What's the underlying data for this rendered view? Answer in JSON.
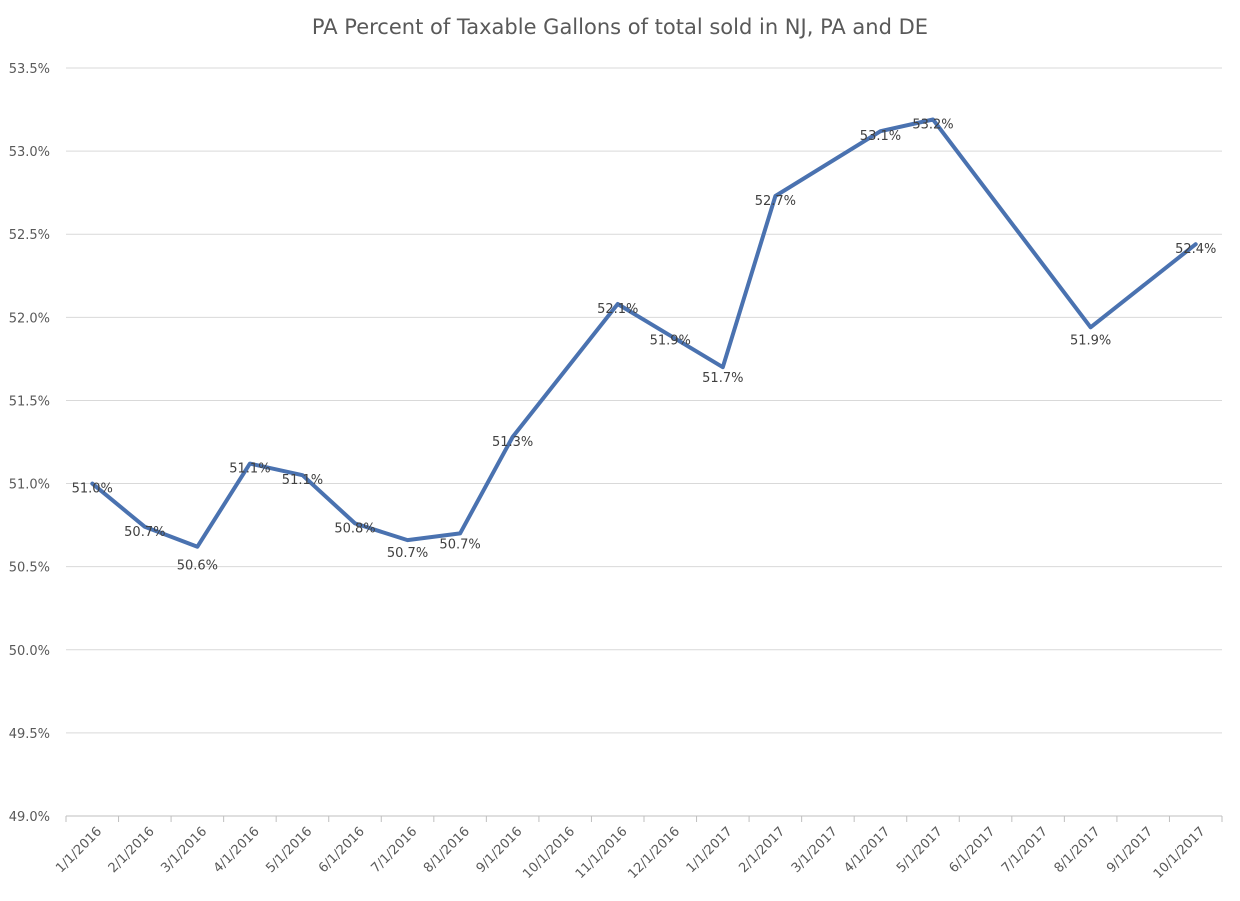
{
  "chart_data": {
    "type": "line",
    "title": "PA Percent of Taxable Gallons of total sold in NJ, PA and DE",
    "xlabel": "",
    "ylabel": "",
    "categories": [
      "1/1/2016",
      "2/1/2016",
      "3/1/2016",
      "4/1/2016",
      "5/1/2016",
      "6/1/2016",
      "7/1/2016",
      "8/1/2016",
      "9/1/2016",
      "10/1/2016",
      "11/1/2016",
      "12/1/2016",
      "1/1/2017",
      "2/1/2017",
      "3/1/2017",
      "4/1/2017",
      "5/1/2017",
      "6/1/2017",
      "7/1/2017",
      "8/1/2017",
      "9/1/2017",
      "10/1/2017"
    ],
    "series": [
      {
        "values": [
          51.0,
          50.74,
          50.62,
          51.12,
          51.05,
          50.76,
          50.66,
          50.7,
          51.28,
          null,
          52.08,
          null,
          51.7,
          52.73,
          null,
          53.12,
          53.19,
          null,
          null,
          51.94,
          null,
          52.44
        ],
        "labels": [
          "51.0%",
          "50.7%",
          "50.6%",
          "51.1%",
          "51.1%",
          "50.8%",
          "50.7%",
          "50.7%",
          "51.3%",
          "",
          "52.1%",
          "51.9%",
          "51.7%",
          "52.7%",
          "",
          "53.1%",
          "53.2%",
          "",
          "",
          "51.9%",
          "",
          "52.4%"
        ],
        "color": "#4a72b0"
      }
    ],
    "ylim": [
      49.0,
      53.5
    ],
    "yticks": [
      "49.0%",
      "49.5%",
      "50.0%",
      "50.5%",
      "51.0%",
      "51.5%",
      "52.0%",
      "52.5%",
      "53.0%",
      "53.5%"
    ],
    "grid": true,
    "legend": "none"
  }
}
